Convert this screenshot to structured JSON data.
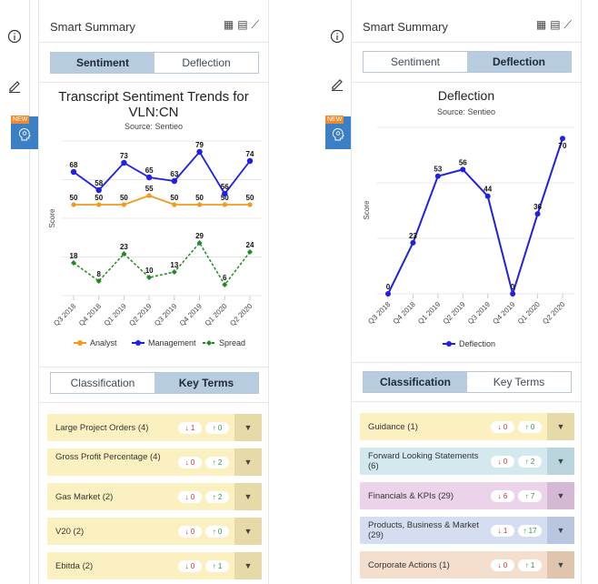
{
  "left": {
    "title": "Smart Summary",
    "tabs": [
      "Sentiment",
      "Deflection"
    ],
    "active_tab": "Sentiment",
    "chart_title_line1": "Transcript Sentiment Trends for",
    "chart_title_line2": "VLN:CN",
    "chart_source": "Source: Sentieo",
    "bottom_tabs": [
      "Classification",
      "Key Terms"
    ],
    "bottom_active": "Key Terms",
    "terms": [
      {
        "label": "Large Project Orders (4)",
        "down": "1",
        "up": "0"
      },
      {
        "label": "Gross Profit Percentage (4)",
        "down": "0",
        "up": "2"
      },
      {
        "label": "Gas Market (2)",
        "down": "0",
        "up": "2"
      },
      {
        "label": "V20 (2)",
        "down": "0",
        "up": "0"
      },
      {
        "label": "Ebitda (2)",
        "down": "0",
        "up": "1"
      }
    ],
    "term_color": "#fbf1c0",
    "drop_color": "#e6dba8"
  },
  "right": {
    "title": "Smart Summary",
    "tabs": [
      "Sentiment",
      "Deflection"
    ],
    "active_tab": "Deflection",
    "chart_title": "Deflection",
    "chart_source": "Source: Sentieo",
    "bottom_tabs": [
      "Classification",
      "Key Terms"
    ],
    "bottom_active": "Classification",
    "terms": [
      {
        "label": "Guidance (1)",
        "down": "0",
        "up": "0",
        "color": "#fbf1c0",
        "drop": "#e6dba8"
      },
      {
        "label": "Forward Looking Statements (6)",
        "down": "0",
        "up": "2",
        "color": "#d3e9ee",
        "drop": "#b9d4dc"
      },
      {
        "label": "Financials & KPIs (29)",
        "down": "6",
        "up": "7",
        "color": "#ebd3ea",
        "drop": "#d5b8d3"
      },
      {
        "label": "Products, Business & Market (29)",
        "down": "1",
        "up": "17",
        "color": "#d4def0",
        "drop": "#b8c6e0"
      },
      {
        "label": "Corporate Actions (1)",
        "down": "0",
        "up": "1",
        "color": "#f4dfce",
        "drop": "#dfc4ae"
      }
    ]
  },
  "sidebar": {
    "new_label": "NEW"
  },
  "colors": {
    "analyst": "#f39a1e",
    "management": "#1f1fe6",
    "spread": "#1f8a1f",
    "deflection": "#1f1fe6"
  },
  "chart_data": [
    {
      "type": "line",
      "title": "Transcript Sentiment Trends for VLN:CN",
      "subtitle": "Source: Sentieo",
      "ylabel": "Score",
      "categories": [
        "Q3 2018",
        "Q4 2018",
        "Q1 2019",
        "Q2 2019",
        "Q3 2019",
        "Q4 2019",
        "Q1 2020",
        "Q2 2020"
      ],
      "series": [
        {
          "name": "Analyst",
          "values": [
            50,
            50,
            50,
            55,
            50,
            50,
            50,
            50
          ]
        },
        {
          "name": "Management",
          "values": [
            68,
            58,
            73,
            65,
            63,
            79,
            56,
            74
          ]
        },
        {
          "name": "Spread",
          "values": [
            18,
            8,
            23,
            10,
            13,
            29,
            6,
            24
          ]
        }
      ],
      "legend": "bottom",
      "grid": true
    },
    {
      "type": "line",
      "title": "Deflection",
      "subtitle": "Source: Sentieo",
      "ylabel": "Score",
      "categories": [
        "Q3 2018",
        "Q4 2018",
        "Q1 2019",
        "Q2 2019",
        "Q3 2019",
        "Q4 2019",
        "Q1 2020",
        "Q2 2020"
      ],
      "series": [
        {
          "name": "Deflection",
          "values": [
            0,
            23,
            53,
            56,
            44,
            0,
            36,
            70
          ]
        }
      ],
      "legend": "bottom",
      "grid": true
    }
  ]
}
